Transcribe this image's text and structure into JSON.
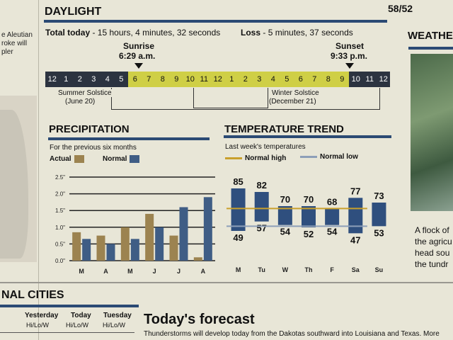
{
  "page_number": "58/52",
  "left_column": {
    "text": "e Aleutian\nroke will\npler"
  },
  "right_column": {
    "title": "WEATHE",
    "caption": "A flock of\nthe agricu\nhead sou\nthe tundr"
  },
  "daylight": {
    "title": "DAYLIGHT",
    "total_label": "Total today",
    "total_value": "- 15 hours, 4 minutes, 32 seconds",
    "loss_label": "Loss",
    "loss_value": "- 5 minutes, 37 seconds",
    "sunrise_label": "Sunrise",
    "sunrise_time": "6:29 a.m.",
    "sunset_label": "Sunset",
    "sunset_time": "9:33 p.m.",
    "hours": [
      "12",
      "1",
      "2",
      "3",
      "4",
      "5",
      "6",
      "7",
      "8",
      "9",
      "10",
      "11",
      "12",
      "1",
      "2",
      "3",
      "4",
      "5",
      "6",
      "7",
      "8",
      "9",
      "10",
      "11",
      "12"
    ],
    "daylight_from_index": 6,
    "daylight_to_index": 21,
    "summer_solstice": "Summer Solstice",
    "summer_date": "(June 20)",
    "winter_solstice": "Winter Solstice",
    "winter_date": "(December 21)"
  },
  "precipitation": {
    "title": "PRECIPITATION",
    "subtitle": "For the previous six months",
    "legend_actual": "Actual",
    "legend_normal": "Normal",
    "colors": {
      "actual": "#9c8350",
      "normal": "#3f5d85"
    },
    "chart_data": {
      "type": "bar",
      "categories": [
        "M",
        "A",
        "M",
        "J",
        "J",
        "A"
      ],
      "y_ticks": [
        "0.0\"",
        "0.5\"",
        "1.0\"",
        "1.5\"",
        "2.0\"",
        "2.5\""
      ],
      "ylim": [
        0,
        2.5
      ],
      "series": [
        {
          "name": "Actual",
          "values": [
            0.85,
            0.75,
            1.0,
            1.4,
            0.75,
            0.1
          ]
        },
        {
          "name": "Normal",
          "values": [
            0.65,
            0.5,
            0.65,
            1.0,
            1.6,
            1.9
          ]
        }
      ]
    }
  },
  "temperature": {
    "title": "TEMPERATURE TREND",
    "subtitle": "Last week's temperatures",
    "legend_high": "Normal high",
    "legend_low": "Normal low",
    "colors": {
      "bar": "#2f4f7e",
      "normal_high": "#c9a02c",
      "normal_low": "#8d9fb8"
    },
    "chart_data": {
      "type": "bar",
      "categories": [
        "M",
        "Tu",
        "W",
        "Th",
        "F",
        "Sa",
        "Su"
      ],
      "high": [
        85,
        82,
        70,
        70,
        68,
        77,
        73
      ],
      "low": [
        49,
        57,
        54,
        52,
        54,
        47,
        53
      ],
      "normal_high": 68,
      "normal_low": 53
    }
  },
  "bottom": {
    "national_title": "NAL CITIES",
    "col_yesterday": "Yesterday",
    "col_today": "Today",
    "col_tuesday": "Tuesday",
    "hilo": "Hi/Lo/W",
    "forecast_title": "Today's forecast",
    "forecast_text": "Thunderstorms will develop today from the Dakotas southward into Louisiana and Texas. More"
  }
}
